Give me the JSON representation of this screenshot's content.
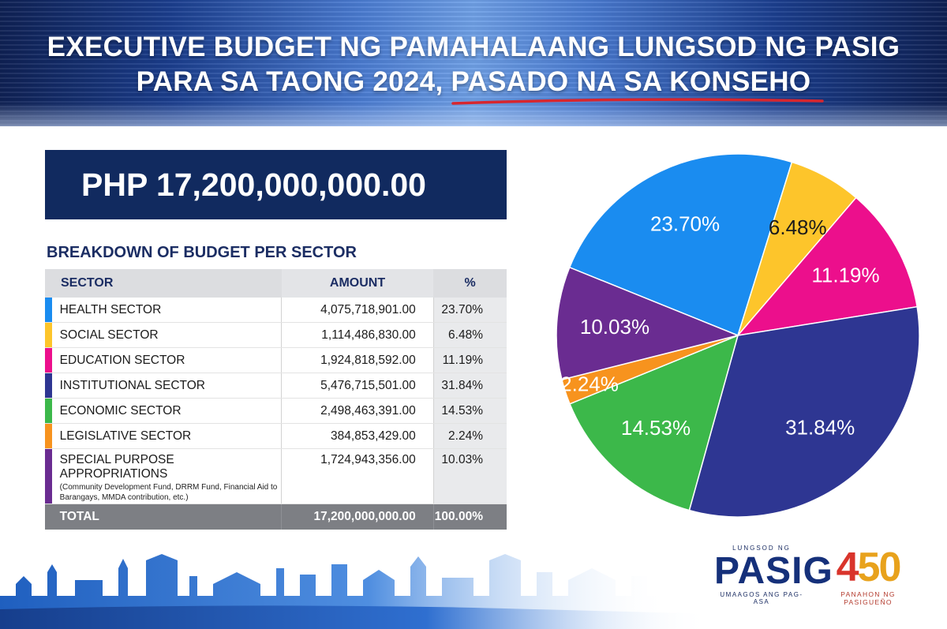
{
  "header": {
    "title_line1": "EXECUTIVE BUDGET NG PAMAHALAANG LUNGSOD NG PASIG",
    "title_line2": "PARA SA TAONG 2024, PASADO NA SA KONSEHO",
    "underline_color": "#d7262e"
  },
  "total_amount": "PHP 17,200,000,000.00",
  "breakdown_title": "BREAKDOWN OF BUDGET PER SECTOR",
  "table": {
    "headers": [
      "SECTOR",
      "AMOUNT",
      "%"
    ],
    "rows": [
      {
        "sector": "HEALTH SECTOR",
        "amount": "4,075,718,901.00",
        "percent": "23.70%",
        "color": "#1a8cf0"
      },
      {
        "sector": "SOCIAL SECTOR",
        "amount": "1,114,486,830.00",
        "percent": "6.48%",
        "color": "#fdc52b"
      },
      {
        "sector": "EDUCATION SECTOR",
        "amount": "1,924,818,592.00",
        "percent": "11.19%",
        "color": "#ec0f8c"
      },
      {
        "sector": "INSTITUTIONAL SECTOR",
        "amount": "5,476,715,501.00",
        "percent": "31.84%",
        "color": "#2e3692"
      },
      {
        "sector": "ECONOMIC SECTOR",
        "amount": "2,498,463,391.00",
        "percent": "14.53%",
        "color": "#3cb84a"
      },
      {
        "sector": "LEGISLATIVE SECTOR",
        "amount": "384,853,429.00",
        "percent": "2.24%",
        "color": "#f7931e"
      },
      {
        "sector": "SPECIAL PURPOSE APPROPRIATIONS",
        "sector_note": "(Community Development Fund, DRRM Fund, Financial Aid to Barangays, MMDA contribution, etc.)",
        "amount": "1,724,943,356.00",
        "percent": "10.03%",
        "color": "#6a2c91"
      }
    ],
    "total": {
      "label": "TOTAL",
      "amount": "17,200,000,000.00",
      "percent": "100.00%"
    }
  },
  "chart_data": {
    "type": "pie",
    "title": "",
    "slices": [
      {
        "label": "23.70%",
        "value": 23.7,
        "color": "#1a8cf0",
        "text_color": "#ffffff"
      },
      {
        "label": "6.48%",
        "value": 6.48,
        "color": "#fdc52b",
        "text_color": "#1b1b1b"
      },
      {
        "label": "11.19%",
        "value": 11.19,
        "color": "#ec0f8c",
        "text_color": "#ffffff"
      },
      {
        "label": "31.84%",
        "value": 31.84,
        "color": "#2e3692",
        "text_color": "#ffffff"
      },
      {
        "label": "14.53%",
        "value": 14.53,
        "color": "#3cb84a",
        "text_color": "#ffffff"
      },
      {
        "label": "2.24%",
        "value": 2.24,
        "color": "#f7931e",
        "text_color": "#ffffff"
      },
      {
        "label": "10.03%",
        "value": 10.03,
        "color": "#6a2c91",
        "text_color": "#ffffff"
      }
    ]
  },
  "logos": {
    "pasig_top": "LUNGSOD NG",
    "pasig_main": "PASIG",
    "pasig_sub": "UMAAGOS ANG PAG-ASA",
    "anniv_main_a": "4",
    "anniv_main_b": "50",
    "anniv_sub": "PANAHON NG PASIGUEÑO"
  }
}
